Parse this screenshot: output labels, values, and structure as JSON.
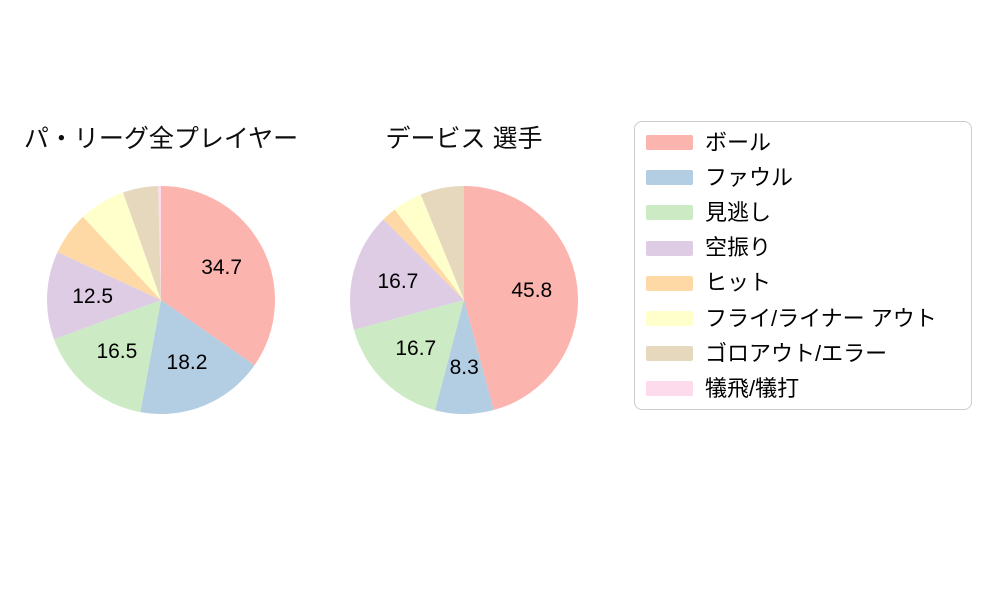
{
  "chart_data": [
    {
      "type": "pie",
      "title": "パ・リーグ全プレイヤー",
      "categories": [
        "ボール",
        "ファウル",
        "見逃し",
        "空振り",
        "ヒット",
        "フライ/ライナー アウト",
        "ゴロアウト/エラー",
        "犠飛/犠打"
      ],
      "values": [
        34.7,
        18.2,
        16.5,
        12.5,
        6.1,
        6.6,
        5.0,
        0.4
      ],
      "data_labels": [
        "34.7",
        "18.2",
        "16.5",
        "12.5",
        "",
        "",
        "",
        ""
      ],
      "colors": [
        "#FBB4AE",
        "#B3CDE3",
        "#CCEBC5",
        "#DECBE4",
        "#FED9A6",
        "#FFFFCC",
        "#E5D8BD",
        "#FDDAEC"
      ],
      "start_angle": "12-oclock",
      "direction": "clockwise",
      "label_radius_frac": 0.6
    },
    {
      "type": "pie",
      "title": "デービス 選手",
      "categories": [
        "ボール",
        "ファウル",
        "見逃し",
        "空振り",
        "ヒット",
        "フライ/ライナー アウト",
        "ゴロアウト/エラー",
        "犠飛/犠打"
      ],
      "values": [
        45.8,
        8.3,
        16.7,
        16.7,
        2.1,
        4.2,
        6.2,
        0
      ],
      "data_labels": [
        "45.8",
        "8.3",
        "16.7",
        "16.7",
        "",
        "",
        "",
        ""
      ],
      "colors": [
        "#FBB4AE",
        "#B3CDE3",
        "#CCEBC5",
        "#DECBE4",
        "#FED9A6",
        "#FFFFCC",
        "#E5D8BD",
        "#FDDAEC"
      ],
      "start_angle": "12-oclock",
      "direction": "clockwise",
      "label_radius_frac": 0.6
    }
  ],
  "legend": {
    "items": [
      {
        "label": "ボール",
        "color": "#FBB4AE"
      },
      {
        "label": "ファウル",
        "color": "#B3CDE3"
      },
      {
        "label": "見逃し",
        "color": "#CCEBC5"
      },
      {
        "label": "空振り",
        "color": "#DECBE4"
      },
      {
        "label": "ヒット",
        "color": "#FED9A6"
      },
      {
        "label": "フライ/ライナー アウト",
        "color": "#FFFFCC"
      },
      {
        "label": "ゴロアウト/エラー",
        "color": "#E5D8BD"
      },
      {
        "label": "犠飛/犠打",
        "color": "#FDDAEC"
      }
    ],
    "border_color": "#cccccc"
  },
  "style": {
    "label_text_color": "#000000",
    "background": "#ffffff"
  }
}
